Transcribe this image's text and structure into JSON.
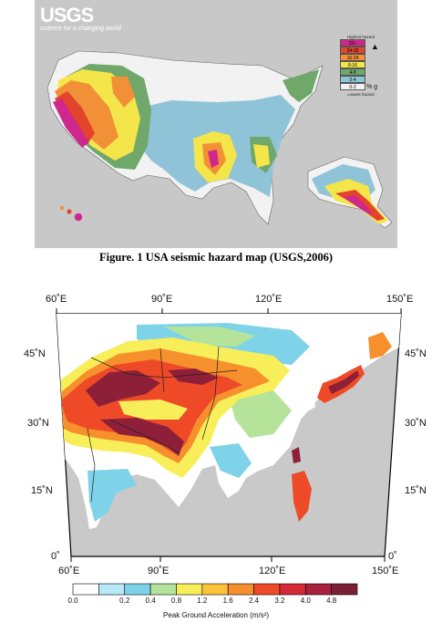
{
  "usgs_map": {
    "logo_text": "USGS",
    "logo_tagline": "science for a changing world",
    "legend": {
      "top_label": "Highest hazard",
      "bottom_label": "Lowest hazard",
      "unit": "% g",
      "classes": [
        {
          "label": "32+",
          "color": "#d0278c"
        },
        {
          "label": "24-32",
          "color": "#e2452b"
        },
        {
          "label": "16-24",
          "color": "#f19036"
        },
        {
          "label": "8-16",
          "color": "#f4e64a"
        },
        {
          "label": "4-8",
          "color": "#6fa86a"
        },
        {
          "label": "2-4",
          "color": "#8fc4d8"
        },
        {
          "label": "0-2",
          "color": "#f2f2f2"
        }
      ]
    },
    "caption": "Figure. 1 USA seismic hazard map  (USGS,2006)"
  },
  "asia_map": {
    "top_lon_labels": [
      "60˚E",
      "90˚E",
      "120˚E",
      "150˚E"
    ],
    "bottom_lon_labels": [
      "60˚E",
      "90˚E",
      "120˚E",
      "150˚E"
    ],
    "left_lat_labels": [
      "45˚N",
      "30˚N",
      "15˚N",
      "0˚"
    ],
    "right_lat_labels": [
      "45˚N",
      "30˚N",
      "15˚N",
      "0˚"
    ],
    "colorbar": {
      "title": "Peak Ground Acceleration (m/s²)",
      "tick_labels": [
        "0.0",
        "0.2",
        "0.4",
        "0.8",
        "1.2",
        "1.6",
        "2.4",
        "3.2",
        "4.0",
        "4.8"
      ],
      "colors": [
        "#ffffff",
        "#b9e9f6",
        "#7dd3ea",
        "#b3e39a",
        "#f7ee5a",
        "#fbc23a",
        "#f6902c",
        "#ee4a28",
        "#d22a36",
        "#a8203c",
        "#7a1f35"
      ]
    },
    "colors": {
      "ocean": "#c9c9c9",
      "low": "#ffffff",
      "cyan": "#7fd3e9",
      "green": "#b5e39a",
      "yellow": "#f7ee5a",
      "orange": "#f6902c",
      "red": "#ee4a28",
      "darkred": "#8e1f38"
    }
  }
}
